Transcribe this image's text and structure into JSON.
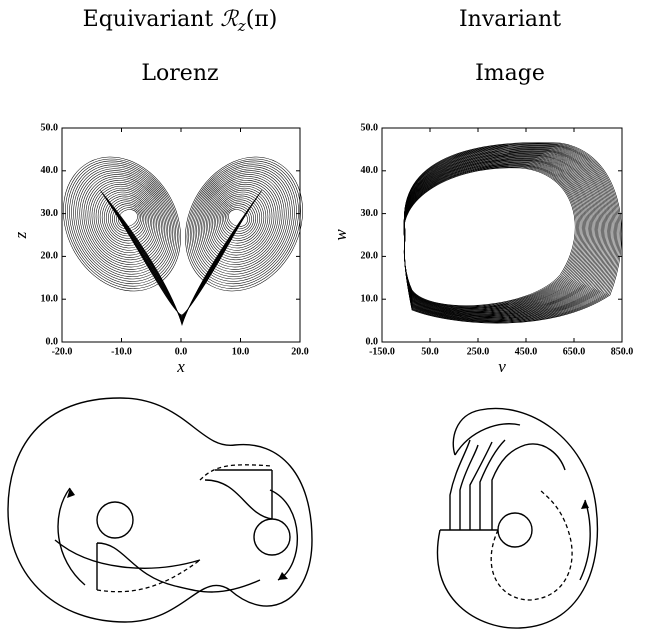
{
  "columns": [
    {
      "heading": {
        "text": "Equivariant",
        "symbol": "ℛ",
        "subscript": "z",
        "argument": "(π)"
      },
      "subheading": "Lorenz"
    },
    {
      "heading": {
        "text": "Invariant"
      },
      "subheading": "Image"
    }
  ],
  "chart_data": [
    {
      "type": "line",
      "xlabel": "x",
      "ylabel": "z",
      "xlim": [
        -20,
        20
      ],
      "ylim": [
        0,
        50
      ],
      "xticks": [
        {
          "value": -20,
          "label": "-20.0"
        },
        {
          "value": -10,
          "label": "-10.0"
        },
        {
          "value": 0,
          "label": "0.0"
        },
        {
          "value": 10,
          "label": "10.0"
        },
        {
          "value": 20,
          "label": "20.0"
        }
      ],
      "yticks": [
        {
          "value": 0,
          "label": "0.0"
        },
        {
          "value": 10,
          "label": "10.0"
        },
        {
          "value": 20,
          "label": "20.0"
        },
        {
          "value": 30,
          "label": "30.0"
        },
        {
          "value": 40,
          "label": "40.0"
        },
        {
          "value": 50,
          "label": "50.0"
        }
      ]
    },
    {
      "type": "line",
      "xlabel": "v",
      "ylabel": "w",
      "xlim": [
        -150,
        850
      ],
      "ylim": [
        0,
        50
      ],
      "xticks": [
        {
          "value": -150,
          "label": "-150.0"
        },
        {
          "value": 50,
          "label": "50.0"
        },
        {
          "value": 250,
          "label": "250.0"
        },
        {
          "value": 450,
          "label": "450.0"
        },
        {
          "value": 650,
          "label": "650.0"
        },
        {
          "value": 850,
          "label": "850.0"
        }
      ],
      "yticks": [
        {
          "value": 0,
          "label": "0.0"
        },
        {
          "value": 10,
          "label": "10.0"
        },
        {
          "value": 20,
          "label": "20.0"
        },
        {
          "value": 30,
          "label": "30.0"
        },
        {
          "value": 40,
          "label": "40.0"
        },
        {
          "value": 50,
          "label": "50.0"
        }
      ]
    }
  ]
}
